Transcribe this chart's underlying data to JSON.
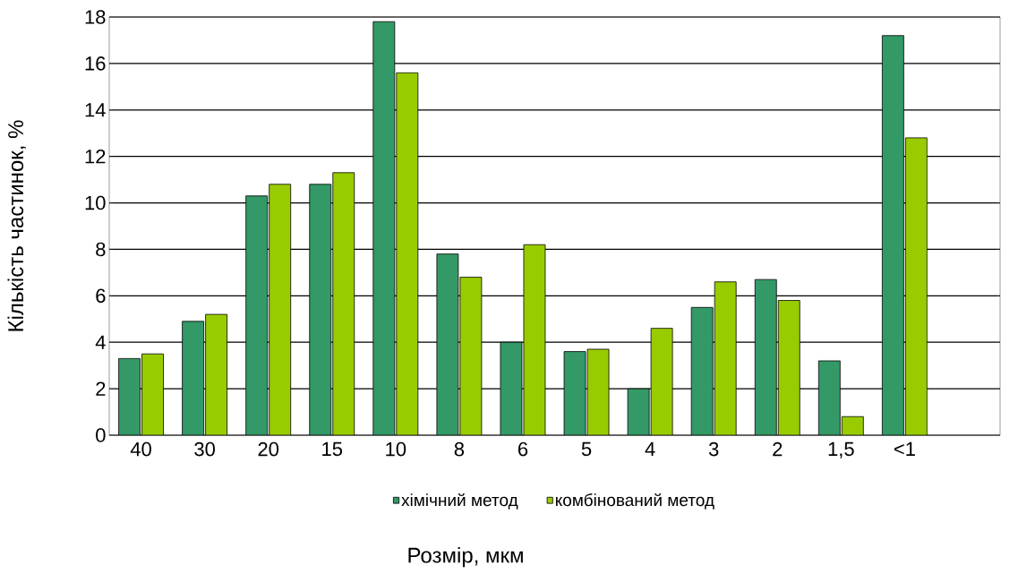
{
  "chart_data": {
    "type": "bar",
    "xlabel": "Розмір, мкм",
    "ylabel": "Кількість частинок, %",
    "categories": [
      "40",
      "30",
      "20",
      "15",
      "10",
      "8",
      "6",
      "5",
      "4",
      "3",
      "2",
      "1,5",
      "<1"
    ],
    "series": [
      {
        "name": "хімічний метод",
        "color": "#339966",
        "values": [
          3.3,
          4.9,
          10.3,
          10.8,
          17.8,
          7.8,
          4.0,
          3.6,
          2.0,
          5.5,
          6.7,
          3.2,
          17.2
        ]
      },
      {
        "name": "комбінований метод",
        "color": "#99cc00",
        "values": [
          3.5,
          5.2,
          10.8,
          11.3,
          15.6,
          6.8,
          8.2,
          3.7,
          4.6,
          6.6,
          5.8,
          0.8,
          12.8
        ]
      }
    ],
    "ylim": [
      0,
      18
    ],
    "yticks": [
      0,
      2,
      4,
      6,
      8,
      10,
      12,
      14,
      16,
      18
    ],
    "grid": "y",
    "legend": "bottom"
  }
}
